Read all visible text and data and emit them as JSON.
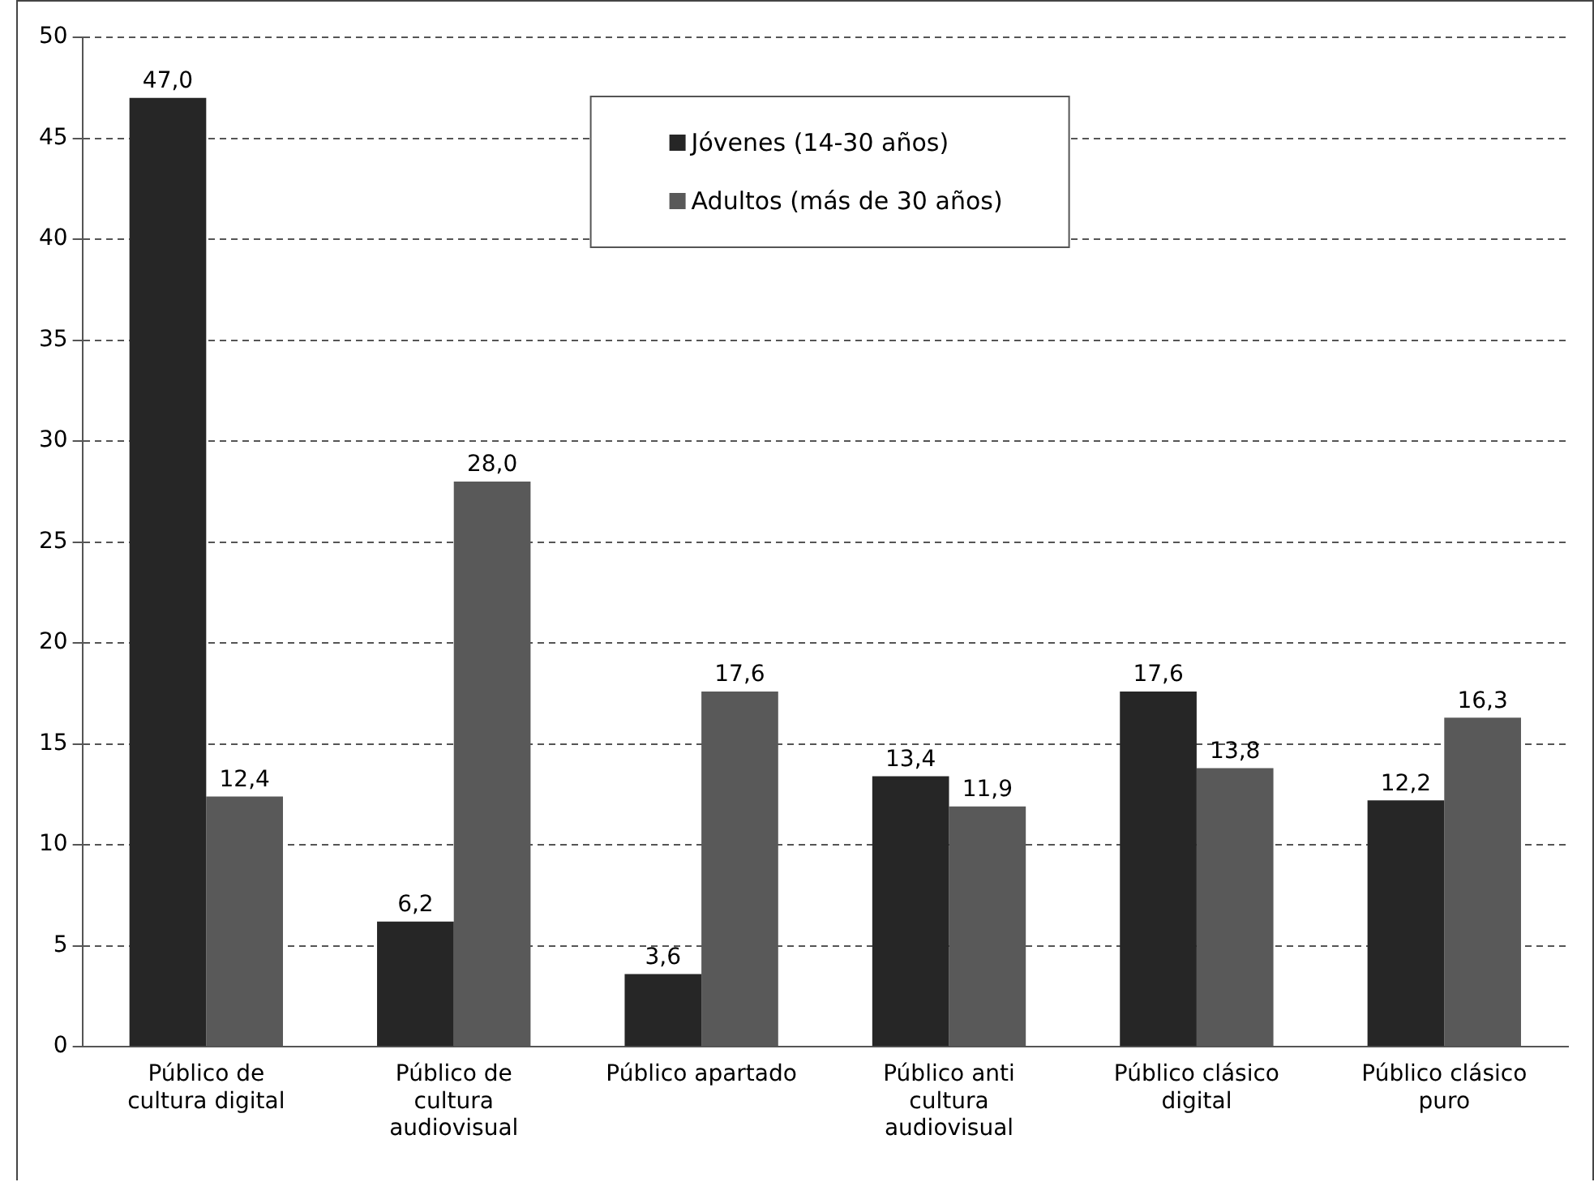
{
  "chart_data": {
    "type": "bar",
    "categories": [
      "Público de cultura digital",
      "Público de cultura audiovisual",
      "Público apartado",
      "Público anti cultura audiovisual",
      "Público clásico digital",
      "Público clásico puro"
    ],
    "series": [
      {
        "name": "Jóvenes (14-30 años)",
        "color": "#262626",
        "values": [
          47.0,
          6.2,
          3.6,
          13.4,
          17.6,
          12.2
        ],
        "value_labels": [
          "47,0",
          "6,2",
          "3,6",
          "13,4",
          "17,6",
          "12,2"
        ]
      },
      {
        "name": "Adultos (más de 30 años)",
        "color": "#595959",
        "values": [
          12.4,
          28.0,
          17.6,
          11.9,
          13.8,
          16.3
        ],
        "value_labels": [
          "12,4",
          "28,0",
          "17,6",
          "11,9",
          "13,8",
          "16,3"
        ]
      }
    ],
    "ylim": [
      0,
      50
    ],
    "yticks": [
      0,
      5,
      10,
      15,
      20,
      25,
      30,
      35,
      40,
      45,
      50
    ],
    "grid": "y",
    "legend": "top"
  }
}
